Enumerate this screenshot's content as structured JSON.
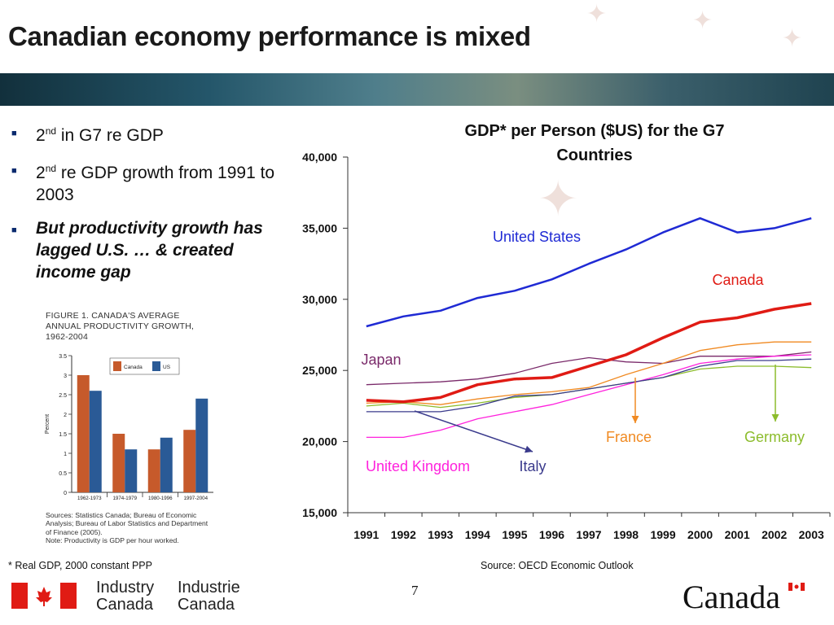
{
  "slide": {
    "title": "Canadian economy performance is mixed",
    "bullets": [
      {
        "pre": "2",
        "sup": "nd",
        "post": " in  G7 re GDP",
        "emphasis": false
      },
      {
        "pre": "2",
        "sup": "nd",
        "post": " re GDP growth from 1991 to 2003",
        "emphasis": false
      },
      {
        "pre": "",
        "sup": "",
        "post": "But productivity growth has lagged U.S. … & created income gap",
        "emphasis": true
      }
    ],
    "footnote": "* Real GDP, 2000 constant PPP",
    "source": "Source:  OECD Economic Outlook",
    "page_number": "7",
    "logo": {
      "en_1": "Industry",
      "en_2": "Canada",
      "fr_1": "Industrie",
      "fr_2": "Canada",
      "wordmark": "Canada"
    }
  },
  "inset": {
    "title_line1": "FIGURE 1. CANADA'S AVERAGE",
    "title_line2": "ANNUAL PRODUCTIVITY GROWTH,",
    "title_line3": "1962-2004",
    "footer_line1": "Sources: Statistics Canada; Bureau of Economic",
    "footer_line2": "Analysis; Bureau of Labor Statistics and Department",
    "footer_line3": "of Finance (2005).",
    "footer_line4": "Note: Productivity is GDP per hour worked."
  },
  "chart_data": [
    {
      "type": "line",
      "title": "GDP* per Person ($US) for the G7 Countries",
      "x": [
        1991,
        1992,
        1993,
        1994,
        1995,
        1996,
        1997,
        1998,
        1999,
        2000,
        2001,
        2002,
        2003
      ],
      "ylim": [
        15000,
        40000
      ],
      "yticks": [
        "15,000",
        "20,000",
        "25,000",
        "30,000",
        "35,000",
        "40,000"
      ],
      "grid": false,
      "series": [
        {
          "name": "United States",
          "color": "#1f2ad4",
          "width": 2.5,
          "values": [
            28100,
            28800,
            29200,
            30100,
            30600,
            31400,
            32500,
            33500,
            34700,
            35700,
            34700,
            35000,
            35700
          ]
        },
        {
          "name": "Canada",
          "color": "#e01b14",
          "width": 3.5,
          "values": [
            22900,
            22800,
            23100,
            24000,
            24400,
            24500,
            25300,
            26100,
            27300,
            28400,
            28700,
            29300,
            29700
          ]
        },
        {
          "name": "Japan",
          "color": "#7a2a6a",
          "width": 1.3,
          "values": [
            24000,
            24100,
            24200,
            24400,
            24800,
            25500,
            25900,
            25600,
            25500,
            26000,
            26000,
            26000,
            26300
          ]
        },
        {
          "name": "France",
          "color": "#f08a22",
          "width": 1.3,
          "values": [
            22700,
            22800,
            22600,
            23000,
            23300,
            23500,
            23800,
            24700,
            25500,
            26400,
            26800,
            27000,
            27000
          ]
        },
        {
          "name": "Germany",
          "color": "#8cbc2c",
          "width": 1.3,
          "values": [
            22500,
            22700,
            22400,
            22700,
            23100,
            23300,
            23700,
            24100,
            24500,
            25100,
            25300,
            25300,
            25200
          ]
        },
        {
          "name": "United Kingdom",
          "color": "#ff22dd",
          "width": 1.3,
          "values": [
            20300,
            20300,
            20800,
            21600,
            22100,
            22600,
            23300,
            24000,
            24700,
            25500,
            25800,
            26000,
            26100
          ]
        },
        {
          "name": "Italy",
          "color": "#3a3a8c",
          "width": 1.3,
          "values": [
            22100,
            22100,
            22100,
            22500,
            23200,
            23300,
            23700,
            24100,
            24500,
            25300,
            25700,
            25700,
            25800
          ]
        }
      ],
      "annotations": [
        "United States",
        "Canada",
        "Japan",
        "France",
        "Germany",
        "United Kingdom",
        "Italy"
      ]
    },
    {
      "type": "bar",
      "categories": [
        "1962-1973",
        "1974-1979",
        "1980-1996",
        "1997-2004"
      ],
      "ylabel": "Percent",
      "ylim": [
        0,
        3.5
      ],
      "yticks": [
        "0",
        "0.5",
        "1",
        "1.5",
        "2",
        "2.5",
        "3",
        "3.5"
      ],
      "series": [
        {
          "name": "Canada",
          "color": "#c65a2b",
          "values": [
            3.0,
            1.5,
            1.1,
            1.6
          ]
        },
        {
          "name": "US",
          "color": "#2a5a96",
          "values": [
            2.6,
            1.1,
            1.4,
            2.4
          ]
        }
      ]
    }
  ]
}
